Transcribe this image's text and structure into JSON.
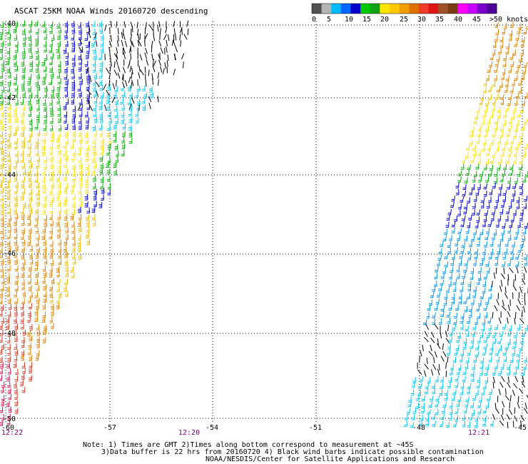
{
  "title": "ASCAT 25KM NOAA Winds 20160720 descending",
  "legend": {
    "unit_suffix": ">50 knots",
    "ticks": [
      "0",
      "5",
      "10",
      "15",
      "20",
      "25",
      "30",
      "35",
      "40",
      "45"
    ],
    "colors": [
      "#505050",
      "#b4b4b4",
      "#00bcff",
      "#0064ff",
      "#0000c8",
      "#00c800",
      "#14a014",
      "#ffe600",
      "#ffc800",
      "#f0a000",
      "#e07000",
      "#f03c28",
      "#e01414",
      "#a05028",
      "#7a3c14",
      "#ff00ff",
      "#c800ff",
      "#7800c8",
      "#500096"
    ]
  },
  "lat_labels": [
    "-40",
    "-42",
    "-44",
    "-46",
    "-48",
    "-50"
  ],
  "lon_labels": [
    "-60",
    "-57",
    "-54",
    "-51",
    "-48",
    "-45"
  ],
  "times": [
    "12:22",
    "12:20",
    "12:21"
  ],
  "notes": [
    "Note: 1) Times are GMT 2)Times along bottom correspond to measurement at ~45S",
    "3)Data buffer is 22 hrs from 20160720 4) Black wind barbs indicate possible contamination",
    "NOAA/NESDIS/Center for Satellite Applications and Research"
  ],
  "wind_colors": {
    "black": "#000000",
    "cyan": "#00c8ff",
    "lightblue": "#0096ff",
    "blue": "#0000dc",
    "green": "#00b400",
    "yellow": "#ffe100",
    "gold": "#f0be00",
    "orange": "#e68200",
    "red": "#dc3c28",
    "pink": "#dc1450",
    "brown": "#b45014"
  }
}
